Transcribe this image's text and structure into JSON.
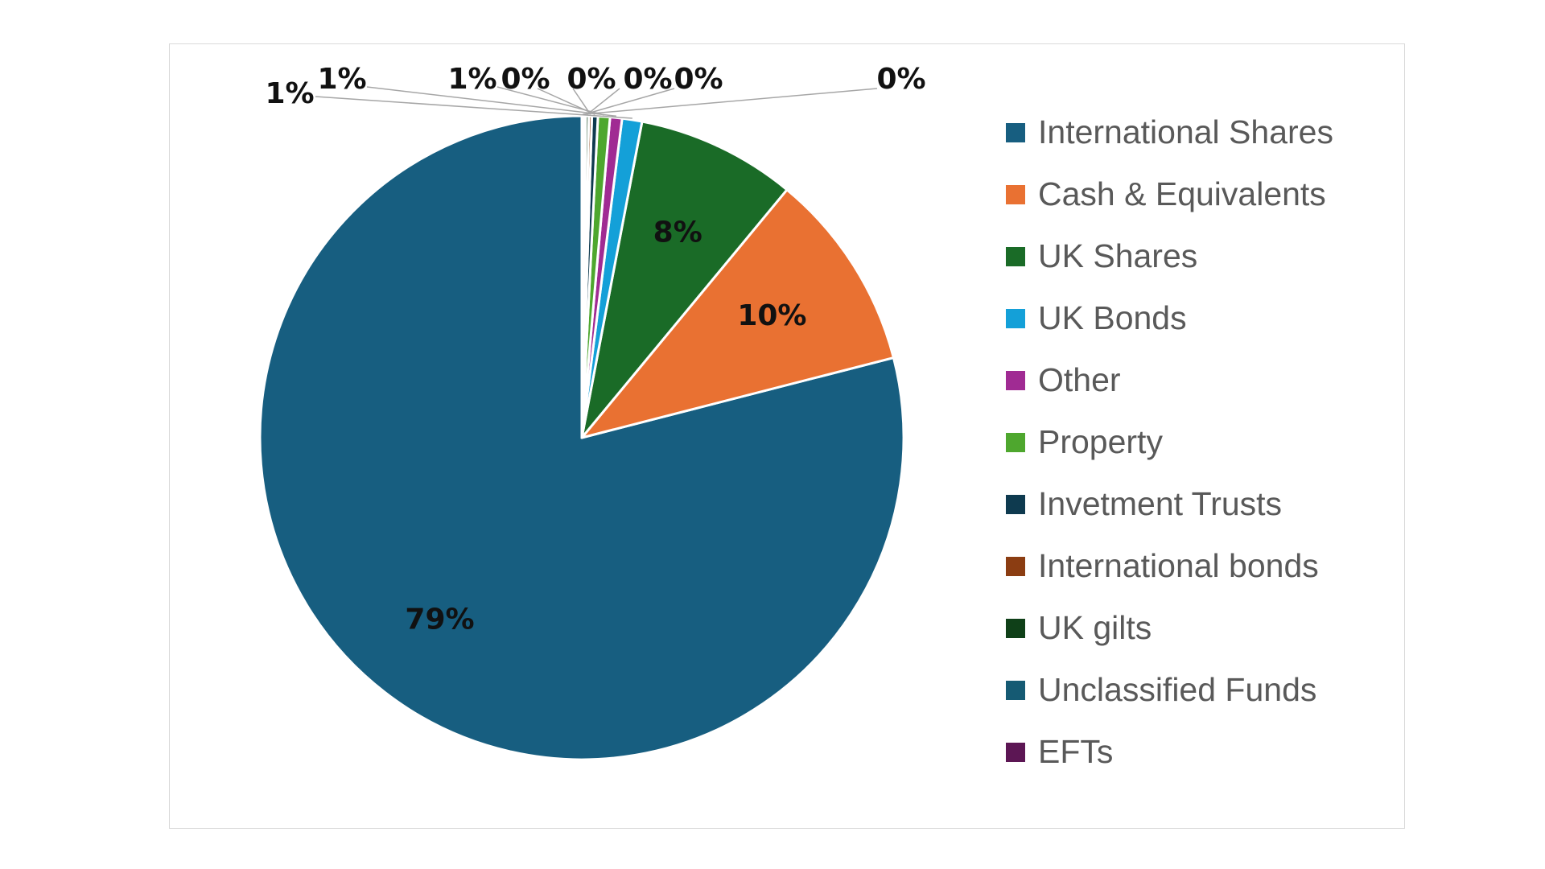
{
  "chart_data": {
    "type": "pie",
    "title": "",
    "legend_position": "right",
    "slices": [
      {
        "name": "International Shares",
        "value": 79,
        "label": "79%",
        "color": "#175e80"
      },
      {
        "name": "Cash & Equivalents",
        "value": 10,
        "label": "10%",
        "color": "#e97132"
      },
      {
        "name": "UK Shares",
        "value": 8,
        "label": "8%",
        "color": "#1a6b27"
      },
      {
        "name": "UK Bonds",
        "value": 1,
        "label": "1%",
        "color": "#14a0d8"
      },
      {
        "name": "Other",
        "value": 0.6,
        "label": "1%",
        "color": "#a02b93"
      },
      {
        "name": "Property",
        "value": 0.6,
        "label": "1%",
        "color": "#4ea72e"
      },
      {
        "name": "Invetment Trusts",
        "value": 0.3,
        "label": "0%",
        "color": "#0e3a4f"
      },
      {
        "name": "International bonds",
        "value": 0.15,
        "label": "0%",
        "color": "#8b3d12"
      },
      {
        "name": "UK gilts",
        "value": 0.15,
        "label": "0%",
        "color": "#0f4018"
      },
      {
        "name": "Unclassified Funds",
        "value": 0.1,
        "label": "0%",
        "color": "#155a73"
      },
      {
        "name": "EFTs",
        "value": 0.1,
        "label": "0%",
        "color": "#5c1654"
      }
    ]
  }
}
